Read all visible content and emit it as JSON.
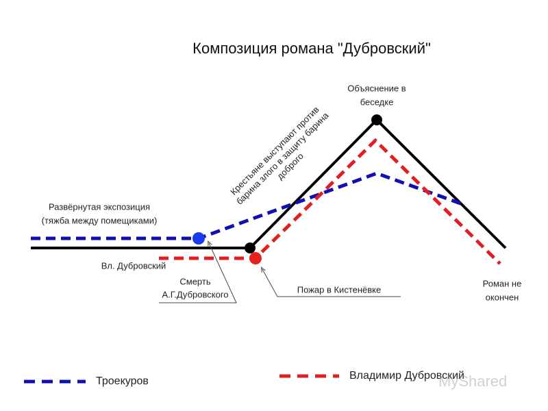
{
  "title": "Композиция романа \"Дубровский\"",
  "labels": {
    "climax": [
      "Объяснение в",
      "беседке"
    ],
    "uprising": [
      "Крестьяне выступают против",
      "барина злого в защиту барина",
      "доброго"
    ],
    "exposition": [
      "Развёрнутая экспозиция",
      "(тяжба между помещиками)"
    ],
    "vl": "Вл. Дубровский",
    "death": [
      "Смерть",
      "А.Г.Дубровского"
    ],
    "fire": "Пожар в Кистенёвке",
    "ending": [
      "Роман не",
      "окончен"
    ]
  },
  "legend": [
    {
      "name": "Троекуров",
      "color": "#1010b0"
    },
    {
      "name": "Владимир Дубровский",
      "color": "#e02020"
    }
  ],
  "watermark": "MyShared"
}
